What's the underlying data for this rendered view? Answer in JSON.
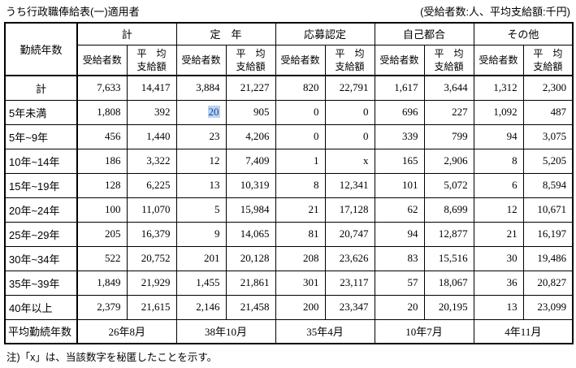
{
  "page": {
    "title": "うち行政職俸給表(一)適用者",
    "unit_note": "(受給者数:人、平均支給額:千円)",
    "footnote": "注)「x」は、当該数字を秘匿したことを示す。"
  },
  "table": {
    "corner_header": "勤続年数",
    "groups": [
      {
        "label": "計"
      },
      {
        "label": "定　年"
      },
      {
        "label": "応募認定"
      },
      {
        "label": "自己都合"
      },
      {
        "label": "その他"
      }
    ],
    "sub_header": {
      "count": "受給者数",
      "avg_line1": "平　均",
      "avg_line2": "支給額"
    },
    "rows": [
      {
        "label": "計",
        "label_center": true,
        "values": [
          "7,633",
          "14,417",
          "3,884",
          "21,227",
          "820",
          "22,791",
          "1,617",
          "3,644",
          "1,312",
          "2,300"
        ]
      },
      {
        "label": "5年未満",
        "values": [
          "1,808",
          "392",
          "20",
          "905",
          "0",
          "0",
          "696",
          "227",
          "1,092",
          "487"
        ]
      },
      {
        "label": "5年~9年",
        "values": [
          "456",
          "1,440",
          "23",
          "4,206",
          "0",
          "0",
          "339",
          "799",
          "94",
          "3,075"
        ]
      },
      {
        "label": "10年~14年",
        "values": [
          "186",
          "3,322",
          "12",
          "7,409",
          "1",
          "x",
          "165",
          "2,906",
          "8",
          "5,205"
        ]
      },
      {
        "label": "15年~19年",
        "values": [
          "128",
          "6,225",
          "13",
          "10,319",
          "8",
          "12,341",
          "101",
          "5,072",
          "6",
          "8,594"
        ]
      },
      {
        "label": "20年~24年",
        "values": [
          "100",
          "11,070",
          "5",
          "15,984",
          "21",
          "17,128",
          "62",
          "8,699",
          "12",
          "10,671"
        ]
      },
      {
        "label": "25年~29年",
        "values": [
          "205",
          "16,379",
          "9",
          "14,065",
          "81",
          "20,747",
          "94",
          "12,877",
          "21",
          "16,197"
        ]
      },
      {
        "label": "30年~34年",
        "values": [
          "522",
          "20,752",
          "201",
          "20,128",
          "208",
          "23,626",
          "83",
          "15,516",
          "30",
          "19,486"
        ]
      },
      {
        "label": "35年~39年",
        "values": [
          "1,849",
          "21,929",
          "1,455",
          "21,861",
          "301",
          "23,117",
          "57",
          "18,067",
          "36",
          "20,827"
        ]
      },
      {
        "label": "40年以上",
        "values": [
          "2,379",
          "21,615",
          "2,146",
          "21,458",
          "200",
          "23,347",
          "20",
          "20,195",
          "13",
          "23,099"
        ]
      }
    ],
    "footer": {
      "label": "平均勤続年数",
      "values": [
        "26年8月",
        "38年10月",
        "35年4月",
        "10年7月",
        "4年11月"
      ]
    },
    "highlight": {
      "row_index": 1,
      "cell_index": 2
    }
  }
}
